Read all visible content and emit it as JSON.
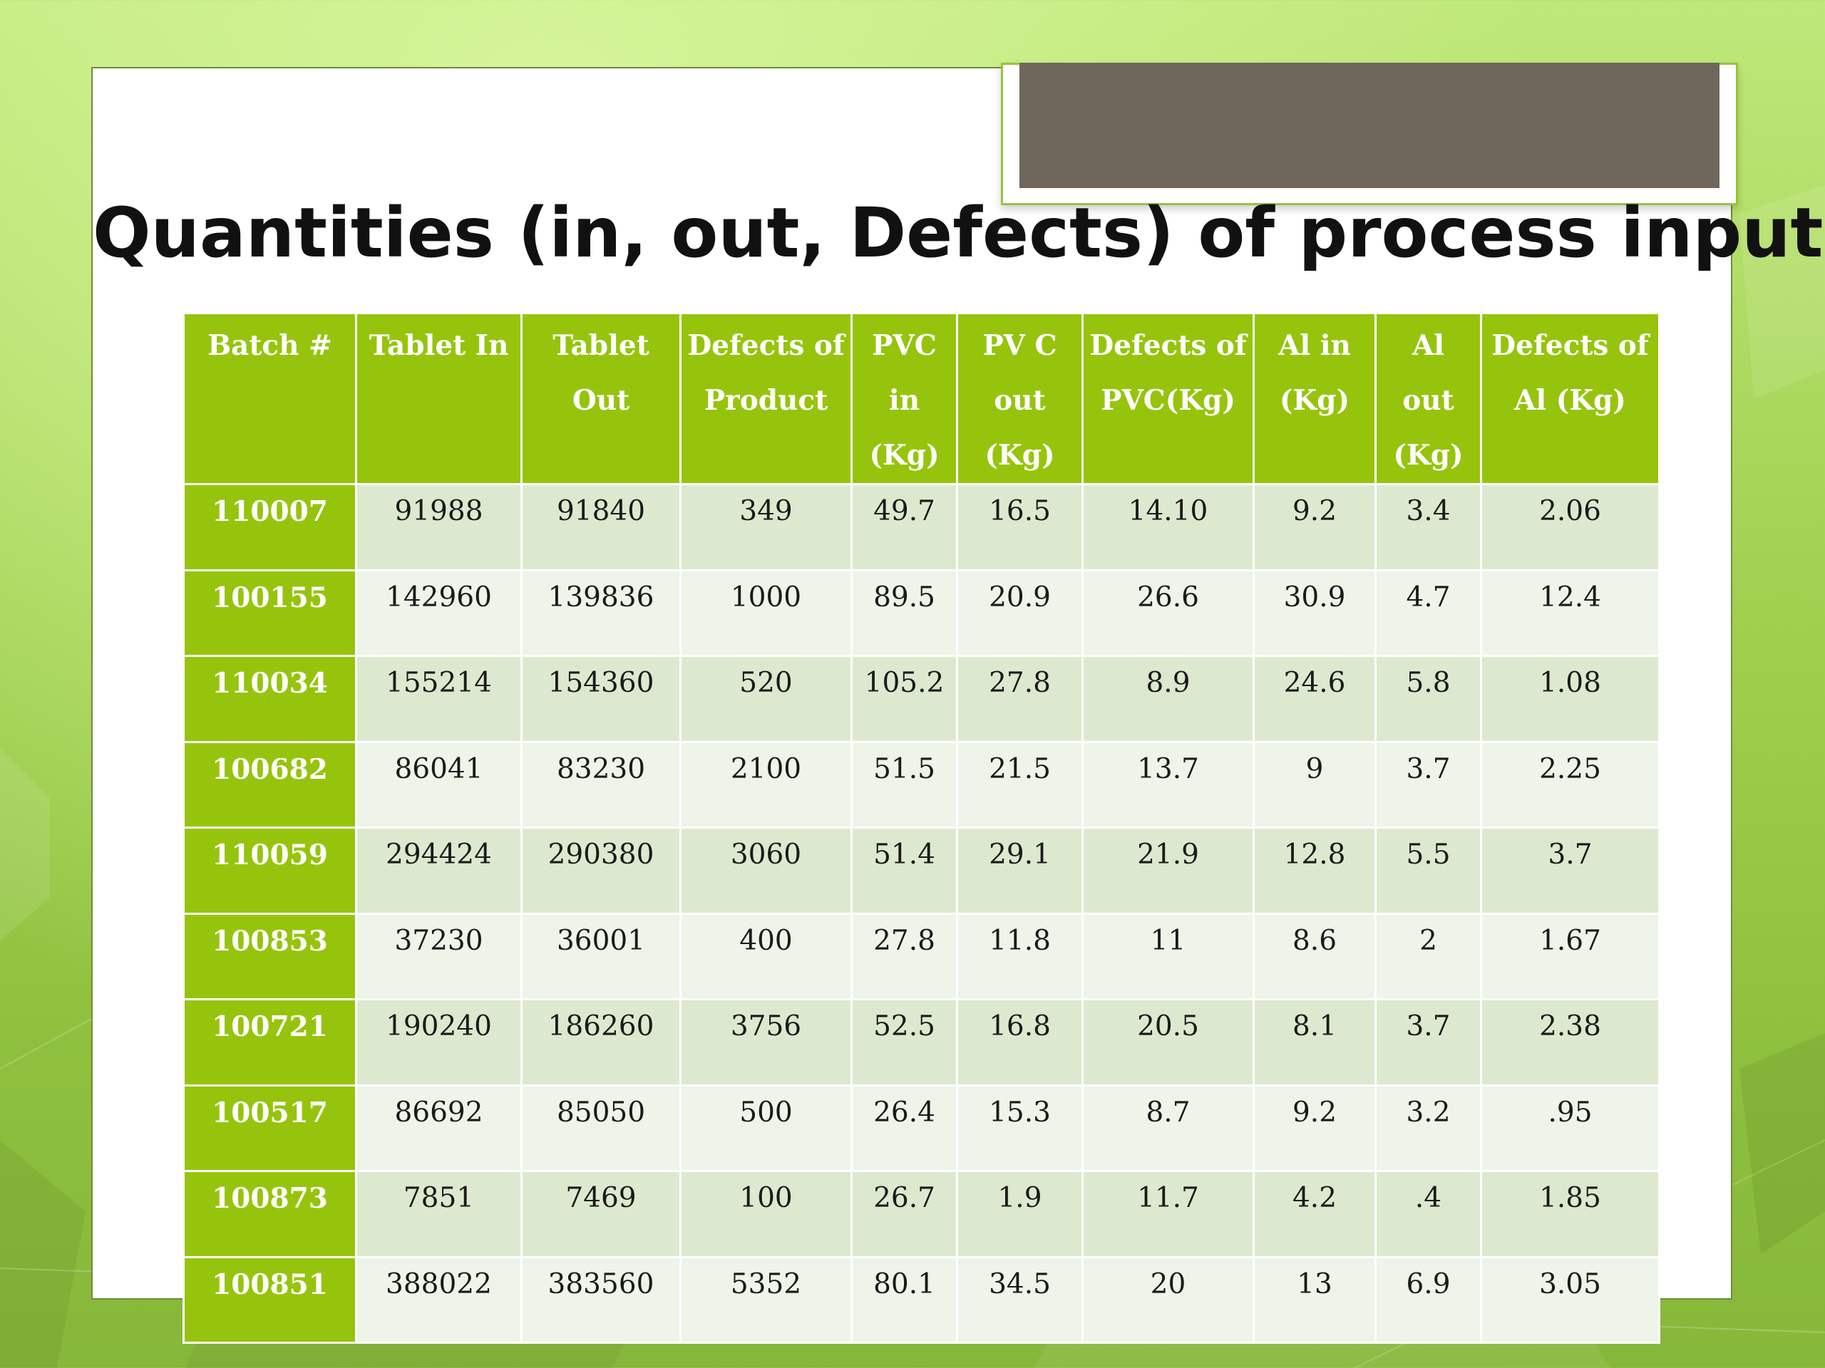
{
  "slide": {
    "title": "Quantities (in, out, Defects) of process inputs"
  },
  "colors": {
    "background_green": "#9fd04e",
    "header_green": "#96c40c",
    "row_dark": "#dde9cf",
    "row_light": "#eef4e8",
    "header_plate": "#6f675b"
  },
  "table": {
    "columns": [
      "Batch #",
      "Tablet In",
      "Tablet Out",
      "Defects of Product",
      "PVC in (Kg)",
      "PV C out (Kg)",
      "Defects of PVC(Kg)",
      "Al in (Kg)",
      "Al out (Kg)",
      "Defects of Al (Kg)"
    ],
    "rows": [
      [
        "110007",
        "91988",
        "91840",
        "349",
        "49.7",
        "16.5",
        "14.10",
        "9.2",
        "3.4",
        "2.06"
      ],
      [
        "100155",
        "142960",
        "139836",
        "1000",
        "89.5",
        "20.9",
        "26.6",
        "30.9",
        "4.7",
        "12.4"
      ],
      [
        "110034",
        "155214",
        "154360",
        "520",
        "105.2",
        "27.8",
        "8.9",
        "24.6",
        "5.8",
        "1.08"
      ],
      [
        "100682",
        "86041",
        "83230",
        "2100",
        "51.5",
        "21.5",
        "13.7",
        "9",
        "3.7",
        "2.25"
      ],
      [
        "110059",
        "294424",
        "290380",
        "3060",
        "51.4",
        "29.1",
        "21.9",
        "12.8",
        "5.5",
        "3.7"
      ],
      [
        "100853",
        "37230",
        "36001",
        "400",
        "27.8",
        "11.8",
        "11",
        "8.6",
        "2",
        "1.67"
      ],
      [
        "100721",
        "190240",
        "186260",
        "3756",
        "52.5",
        "16.8",
        "20.5",
        "8.1",
        "3.7",
        "2.38"
      ],
      [
        "100517",
        "86692",
        "85050",
        "500",
        "26.4",
        "15.3",
        "8.7",
        "9.2",
        "3.2",
        ".95"
      ],
      [
        "100873",
        "7851",
        "7469",
        "100",
        "26.7",
        "1.9",
        "11.7",
        "4.2",
        ".4",
        "1.85"
      ],
      [
        "100851",
        "388022",
        "383560",
        "5352",
        "80.1",
        "34.5",
        "20",
        "13",
        "6.9",
        "3.05"
      ]
    ]
  }
}
